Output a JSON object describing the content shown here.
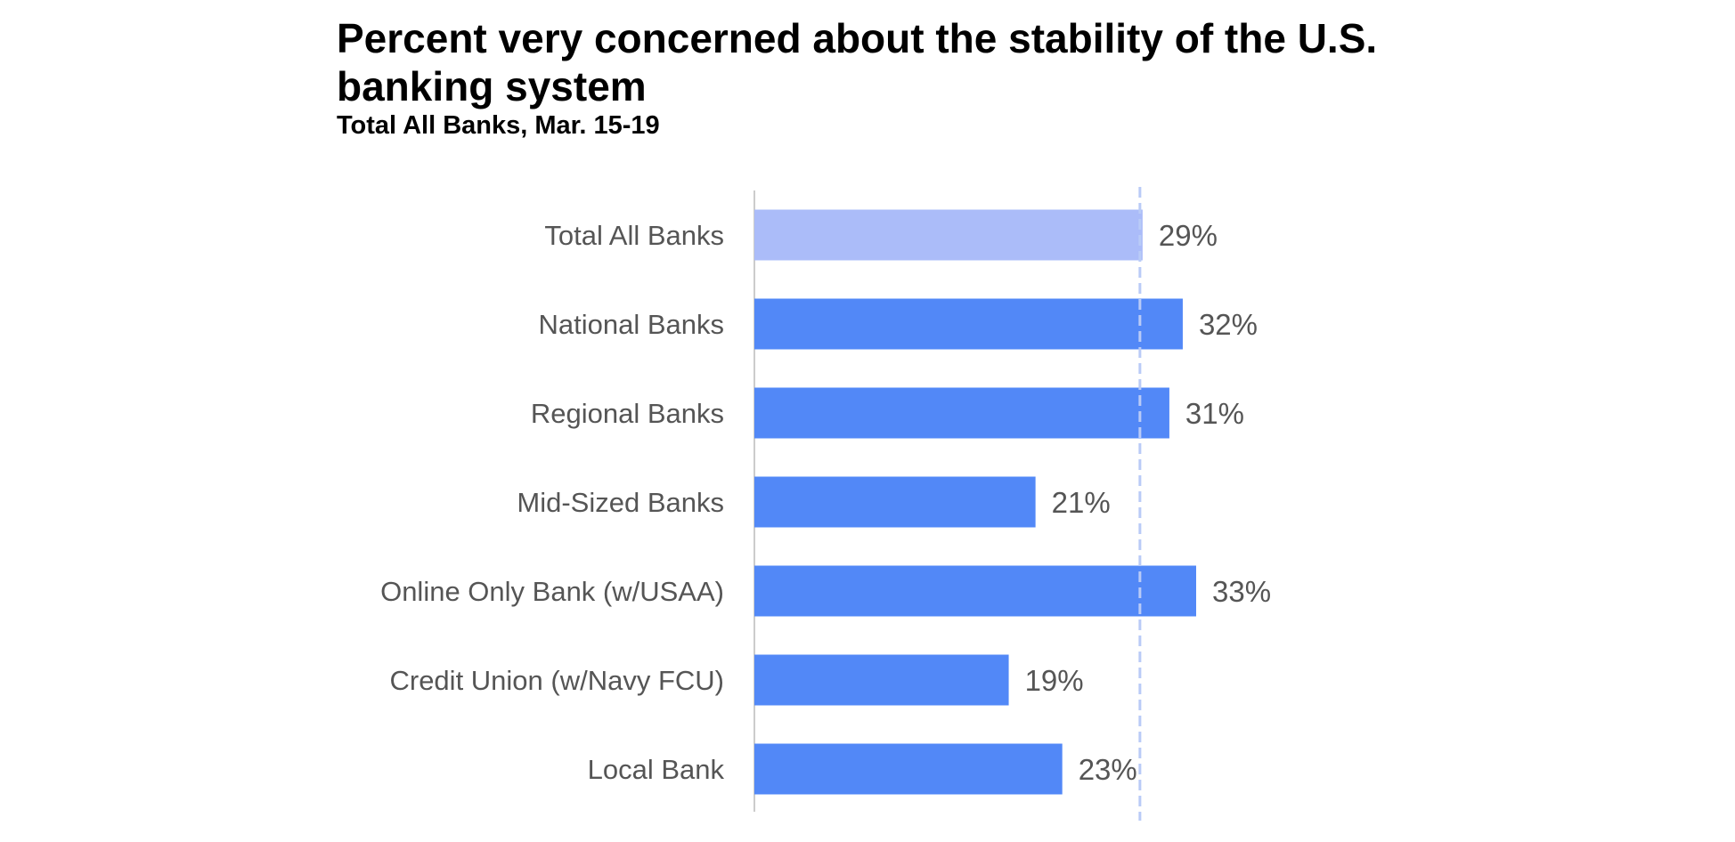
{
  "chart_data": {
    "type": "bar",
    "orientation": "horizontal",
    "title": "Percent very concerned about the stability of the U.S. banking system",
    "subtitle": "Total All Banks, Mar. 15-19",
    "categories": [
      "Total All Banks",
      "National Banks",
      "Regional Banks",
      "Mid-Sized Banks",
      "Online Only Bank (w/USAA)",
      "Credit Union (w/Navy FCU)",
      "Local Bank"
    ],
    "values": [
      29,
      32,
      31,
      21,
      33,
      19,
      23
    ],
    "value_labels": [
      "29%",
      "32%",
      "31%",
      "21%",
      "33%",
      "19%",
      "23%"
    ],
    "reference_line": 29,
    "xlim": [
      0,
      37
    ],
    "grid": false,
    "legend": "none",
    "colors": {
      "highlight_bar": "#abbcf9",
      "bar": "#5288f7",
      "reference_line": "#b9cbf7",
      "axis_line": "#cccccc",
      "label_text": "#555555",
      "title_text": "#000000"
    }
  }
}
